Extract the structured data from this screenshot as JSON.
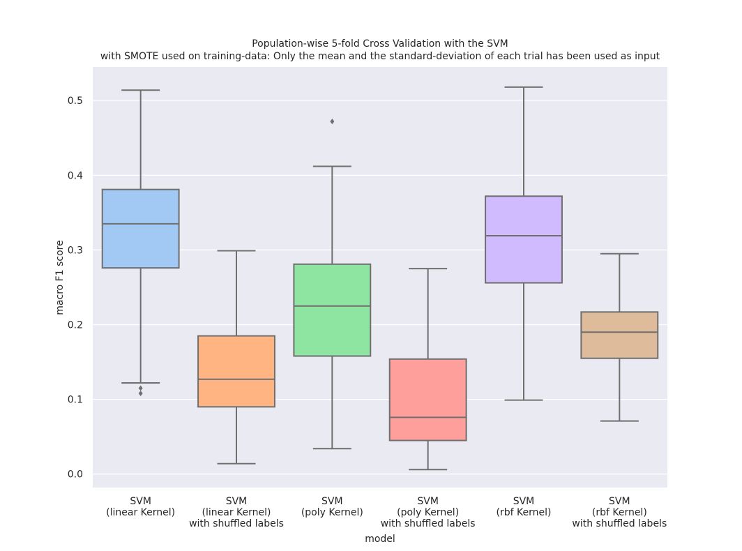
{
  "chart_data": {
    "type": "boxplot",
    "title_line1": "Population-wise 5-fold Cross Validation with the SVM",
    "title_line2": "with SMOTE used on training-data: Only the mean and the standard-deviation of each trial has been used as input",
    "xlabel": "model",
    "ylabel": "macro F1 score",
    "ylim": [
      -0.018,
      0.545
    ],
    "yticks": [
      "0.0",
      "0.1",
      "0.2",
      "0.3",
      "0.4",
      "0.5"
    ],
    "ytick_values": [
      0.0,
      0.1,
      0.2,
      0.3,
      0.4,
      0.5
    ],
    "grid": true,
    "colors": {
      "background": "#EAEAF2",
      "grid": "#FFFFFF",
      "line": "#6F6F6F"
    },
    "categories": [
      [
        "SVM",
        "(linear Kernel)"
      ],
      [
        "SVM",
        "(linear Kernel)",
        "with shuffled labels"
      ],
      [
        "SVM",
        "(poly Kernel)"
      ],
      [
        "SVM",
        "(poly Kernel)",
        "with shuffled labels"
      ],
      [
        "SVM",
        "(rbf Kernel)"
      ],
      [
        "SVM",
        "(rbf Kernel)",
        "with shuffled labels"
      ]
    ],
    "boxes": [
      {
        "color": "#A1C9F4",
        "whislo": 0.122,
        "q1": 0.276,
        "med": 0.335,
        "q3": 0.381,
        "whishi": 0.514,
        "fliers": [
          0.115,
          0.108
        ]
      },
      {
        "color": "#FFB482",
        "whislo": 0.014,
        "q1": 0.09,
        "med": 0.127,
        "q3": 0.185,
        "whishi": 0.299,
        "fliers": []
      },
      {
        "color": "#8DE5A1",
        "whislo": 0.034,
        "q1": 0.158,
        "med": 0.225,
        "q3": 0.281,
        "whishi": 0.412,
        "fliers": [
          0.472
        ]
      },
      {
        "color": "#FF9F9B",
        "whislo": 0.006,
        "q1": 0.045,
        "med": 0.076,
        "q3": 0.154,
        "whishi": 0.275,
        "fliers": []
      },
      {
        "color": "#D0BBFF",
        "whislo": 0.099,
        "q1": 0.256,
        "med": 0.319,
        "q3": 0.372,
        "whishi": 0.518,
        "fliers": []
      },
      {
        "color": "#DEBB9B",
        "whislo": 0.071,
        "q1": 0.155,
        "med": 0.19,
        "q3": 0.217,
        "whishi": 0.295,
        "fliers": []
      }
    ]
  }
}
